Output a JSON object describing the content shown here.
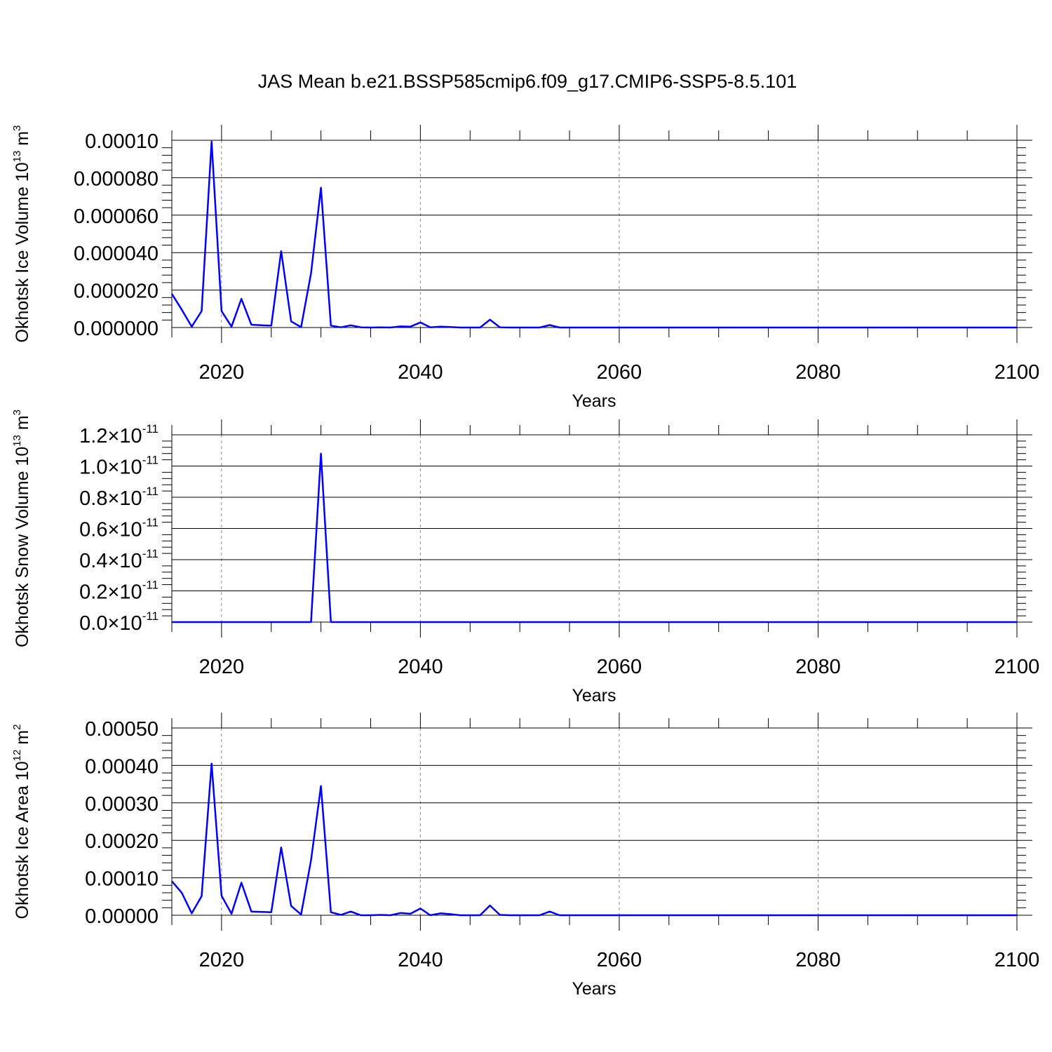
{
  "title": "JAS Mean b.e21.BSSP585cmip6.f09_g17.CMIP6-SSP5-8.5.101",
  "line_color": "#0000ff",
  "x_ticks": [
    "2020",
    "2040",
    "2060",
    "2080",
    "2100"
  ],
  "chart_data": [
    {
      "type": "line",
      "xlabel": "Years",
      "ylabel": "Okhotsk Ice Volume 10",
      "ylabel_exp": "13",
      "ylabel_unit": " m",
      "ylabel_unit_exp": "3",
      "xlim": [
        2015,
        2100
      ],
      "ylim": [
        0,
        0.0001
      ],
      "y_ticks": [
        "0.000000",
        "0.000020",
        "0.000040",
        "0.000060",
        "0.000080",
        "0.00010"
      ],
      "grid": "vertical dashed at major x ticks",
      "series": [
        {
          "x": [
            2015,
            2016,
            2017,
            2018,
            2019,
            2020,
            2021,
            2022,
            2023,
            2024,
            2025,
            2026,
            2027,
            2028,
            2029,
            2030,
            2031,
            2032,
            2033,
            2034,
            2035,
            2036,
            2037,
            2038,
            2039,
            2040,
            2041,
            2042,
            2043,
            2044,
            2045,
            2046,
            2047,
            2048,
            2049,
            2050,
            2051,
            2052,
            2053,
            2054,
            2055,
            2060,
            2070,
            2080,
            2090,
            2100
          ],
          "y": [
            1.8e-05,
            9.5e-06,
            5e-07,
            8.8e-06,
            9.93e-05,
            8.8e-06,
            5e-07,
            1.53e-05,
            1.5e-06,
            1.2e-06,
            1e-06,
            4.08e-05,
            3.3e-06,
            2e-07,
            2.9e-05,
            7.47e-05,
            1e-06,
            1e-07,
            1.2e-06,
            1e-07,
            0.0,
            1e-07,
            0.0,
            6e-07,
            5e-07,
            2.7e-06,
            1e-07,
            5e-07,
            3e-07,
            0.0,
            0.0,
            0.0,
            4.2e-06,
            1e-07,
            0.0,
            0.0,
            0.0,
            0.0,
            1.3e-06,
            0.0,
            0.0,
            0.0,
            0.0,
            0.0,
            0.0,
            0.0
          ]
        }
      ]
    },
    {
      "type": "line",
      "xlabel": "Years",
      "ylabel": "Okhotsk Snow Volume 10",
      "ylabel_exp": "13",
      "ylabel_unit": " m",
      "ylabel_unit_exp": "3",
      "xlim": [
        2015,
        2100
      ],
      "ylim": [
        0,
        1.2e-11
      ],
      "y_ticks": [
        "0.0",
        "0.2",
        "0.4",
        "0.6",
        "0.8",
        "1.0",
        "1.2"
      ],
      "y_tick_suffix": "×10",
      "y_tick_exp": "-11",
      "grid": "vertical dashed at major x ticks",
      "series": [
        {
          "x": [
            2015,
            2020,
            2025,
            2029,
            2030,
            2031,
            2040,
            2060,
            2080,
            2100
          ],
          "y": [
            0,
            0,
            0,
            0,
            1.08e-11,
            0,
            0,
            0,
            0,
            0
          ]
        }
      ]
    },
    {
      "type": "line",
      "xlabel": "Years",
      "ylabel": "Okhotsk Ice Area 10",
      "ylabel_exp": "12",
      "ylabel_unit": " m",
      "ylabel_unit_exp": "2",
      "xlim": [
        2015,
        2100
      ],
      "ylim": [
        0,
        0.0005
      ],
      "y_ticks": [
        "0.00000",
        "0.00010",
        "0.00020",
        "0.00030",
        "0.00040",
        "0.00050"
      ],
      "grid": "vertical dashed at major x ticks",
      "series": [
        {
          "x": [
            2015,
            2016,
            2017,
            2018,
            2019,
            2020,
            2021,
            2022,
            2023,
            2024,
            2025,
            2026,
            2027,
            2028,
            2029,
            2030,
            2031,
            2032,
            2033,
            2034,
            2035,
            2036,
            2037,
            2038,
            2039,
            2040,
            2041,
            2042,
            2043,
            2044,
            2045,
            2046,
            2047,
            2048,
            2049,
            2050,
            2051,
            2052,
            2053,
            2054,
            2055,
            2060,
            2070,
            2080,
            2090,
            2100
          ],
          "y": [
            9.1e-05,
            6e-05,
            5e-06,
            5.1e-05,
            0.000405,
            5.2e-05,
            4e-06,
            8.7e-05,
            1e-05,
            9e-06,
            8e-06,
            0.000181,
            2.5e-05,
            2e-06,
            0.000147,
            0.000345,
            8e-06,
            1e-06,
            1e-05,
            0.0,
            0.0,
            1e-06,
            0.0,
            6e-06,
            4e-06,
            1.8e-05,
            0.0,
            5e-06,
            3e-06,
            0.0,
            0.0,
            0.0,
            2.6e-05,
            1e-06,
            0.0,
            0.0,
            0.0,
            0.0,
            1e-05,
            0.0,
            0.0,
            0.0,
            0.0,
            0.0,
            0.0,
            0.0
          ]
        }
      ]
    }
  ]
}
